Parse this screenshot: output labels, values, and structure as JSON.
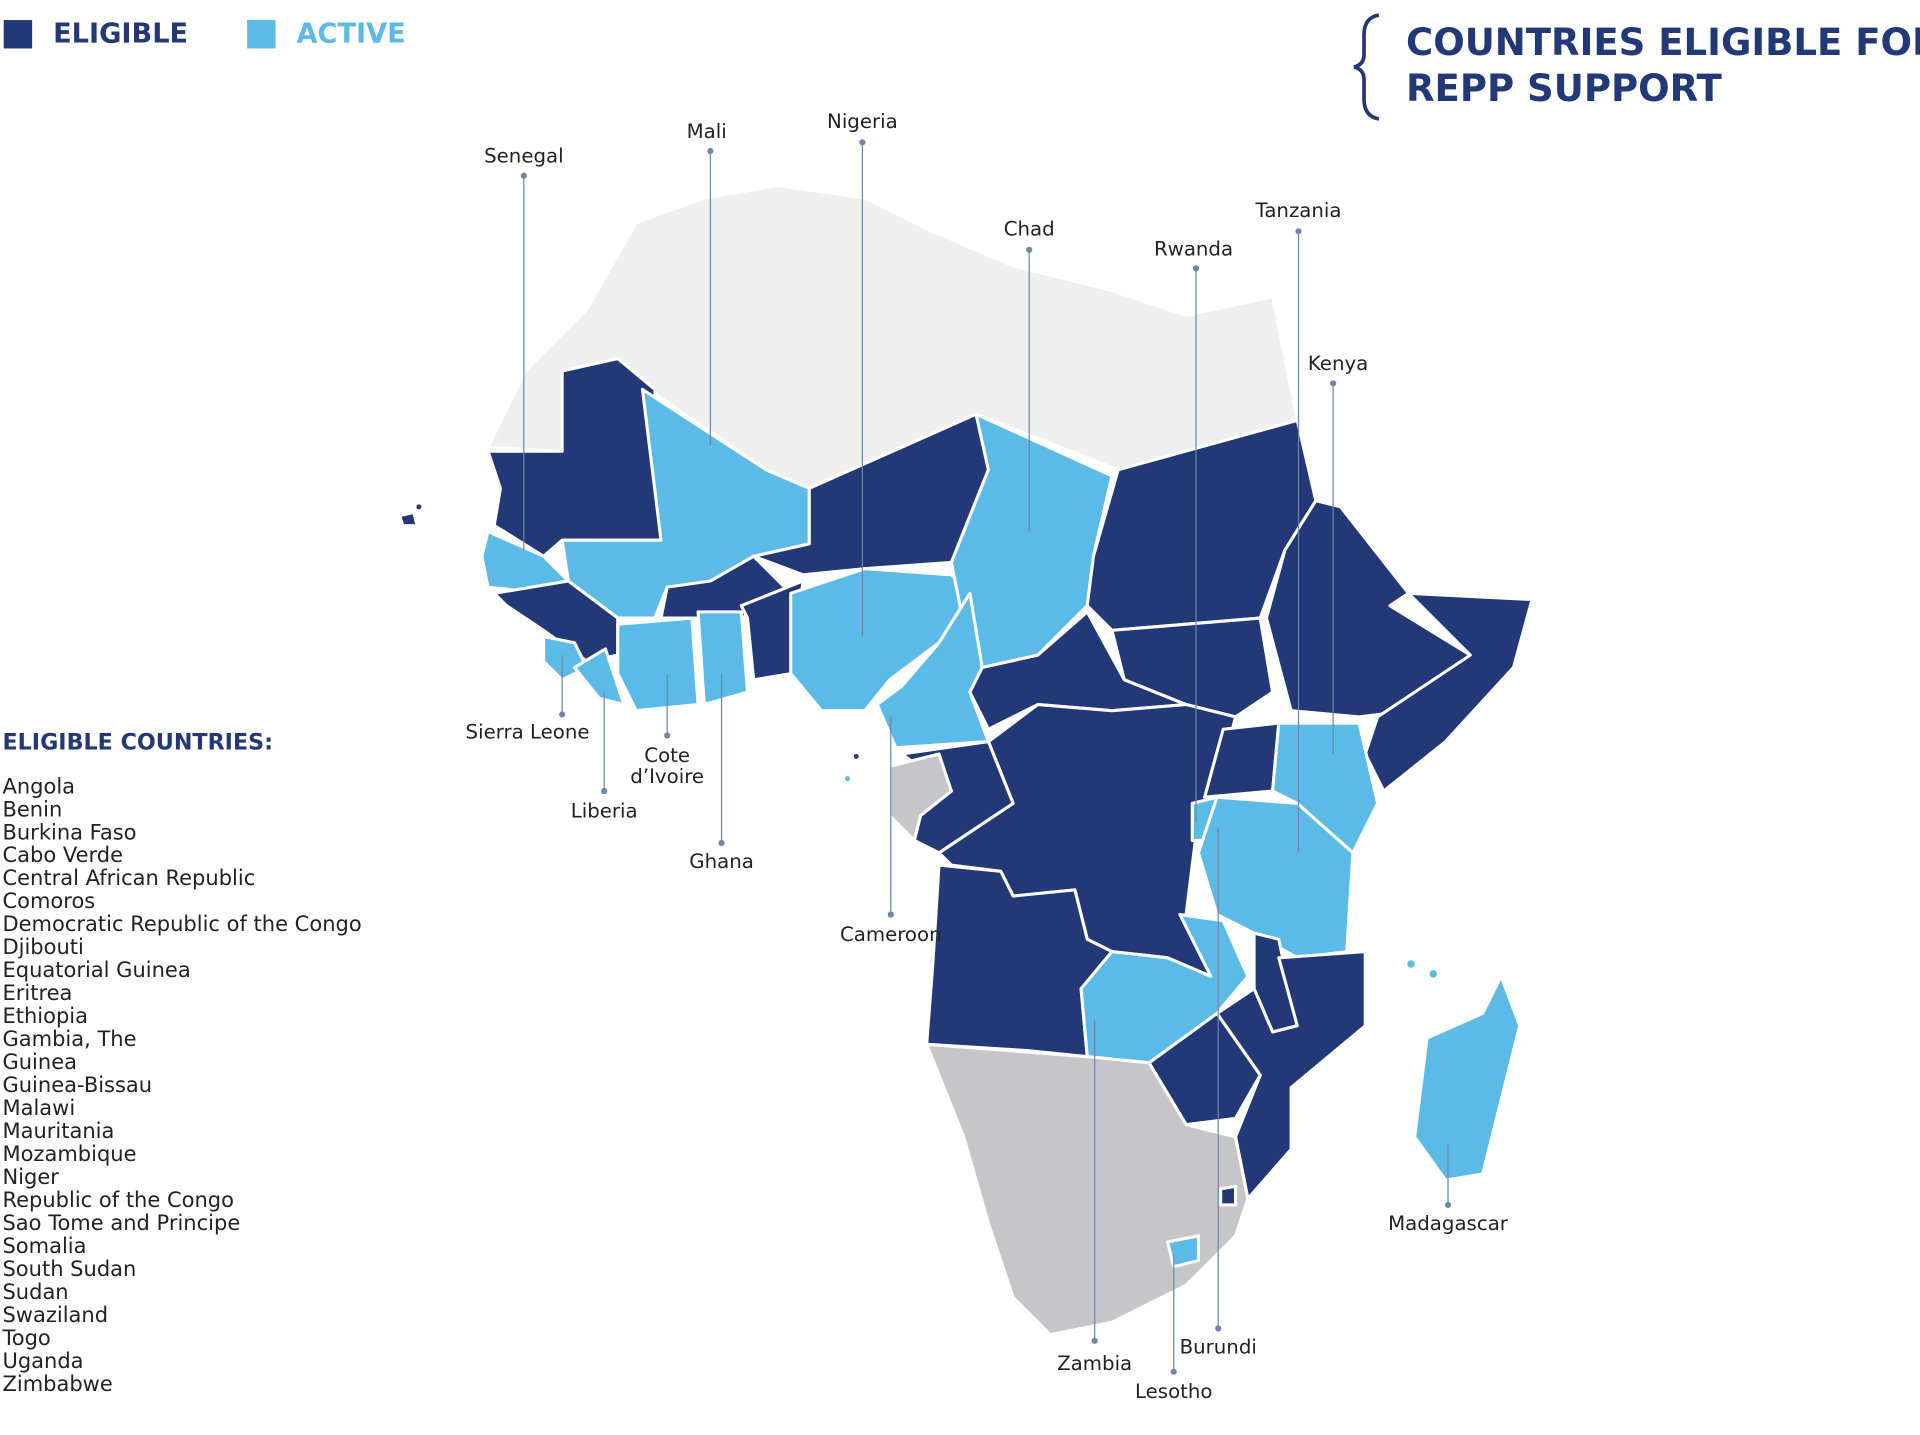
{
  "legend": [
    {
      "label": "ELIGIBLE",
      "color": "#223877"
    },
    {
      "label": "ACTIVE",
      "color": "#5bbbe6"
    }
  ],
  "title_lines": [
    "COUNTRIES ELIGIBLE FOR",
    "REPP SUPPORT"
  ],
  "eligible_heading": "ELIGIBLE COUNTRIES:",
  "eligible_countries": [
    "Angola",
    "Benin",
    "Burkina Faso",
    "Cabo Verde",
    "Central African Republic",
    "Comoros",
    "Democratic Republic of the Congo",
    "Djibouti",
    "Equatorial Guinea",
    "Eritrea",
    "Ethiopia",
    "Gambia, The",
    "Guinea",
    "Guinea-Bissau",
    "Malawi",
    "Mauritania",
    "Mozambique",
    "Niger",
    "Republic of the Congo",
    "Sao Tome and Principe",
    "Somalia",
    "South Sudan",
    "Sudan",
    "Swaziland",
    "Togo",
    "Uganda",
    "Zimbabwe"
  ],
  "callouts": [
    {
      "lines": [
        "Senegal"
      ]
    },
    {
      "lines": [
        "Mali"
      ]
    },
    {
      "lines": [
        "Nigeria"
      ]
    },
    {
      "lines": [
        "Chad"
      ]
    },
    {
      "lines": [
        "Rwanda"
      ]
    },
    {
      "lines": [
        "Tanzania"
      ]
    },
    {
      "lines": [
        "Kenya"
      ]
    },
    {
      "lines": [
        "Sierra Leone"
      ]
    },
    {
      "lines": [
        "Cote",
        "d’Ivoire"
      ]
    },
    {
      "lines": [
        "Liberia"
      ]
    },
    {
      "lines": [
        "Ghana"
      ]
    },
    {
      "lines": [
        "Cameroon"
      ]
    },
    {
      "lines": [
        "Zambia"
      ]
    },
    {
      "lines": [
        "Lesotho"
      ]
    },
    {
      "lines": [
        "Burundi"
      ]
    },
    {
      "lines": [
        "Madagascar"
      ]
    }
  ]
}
